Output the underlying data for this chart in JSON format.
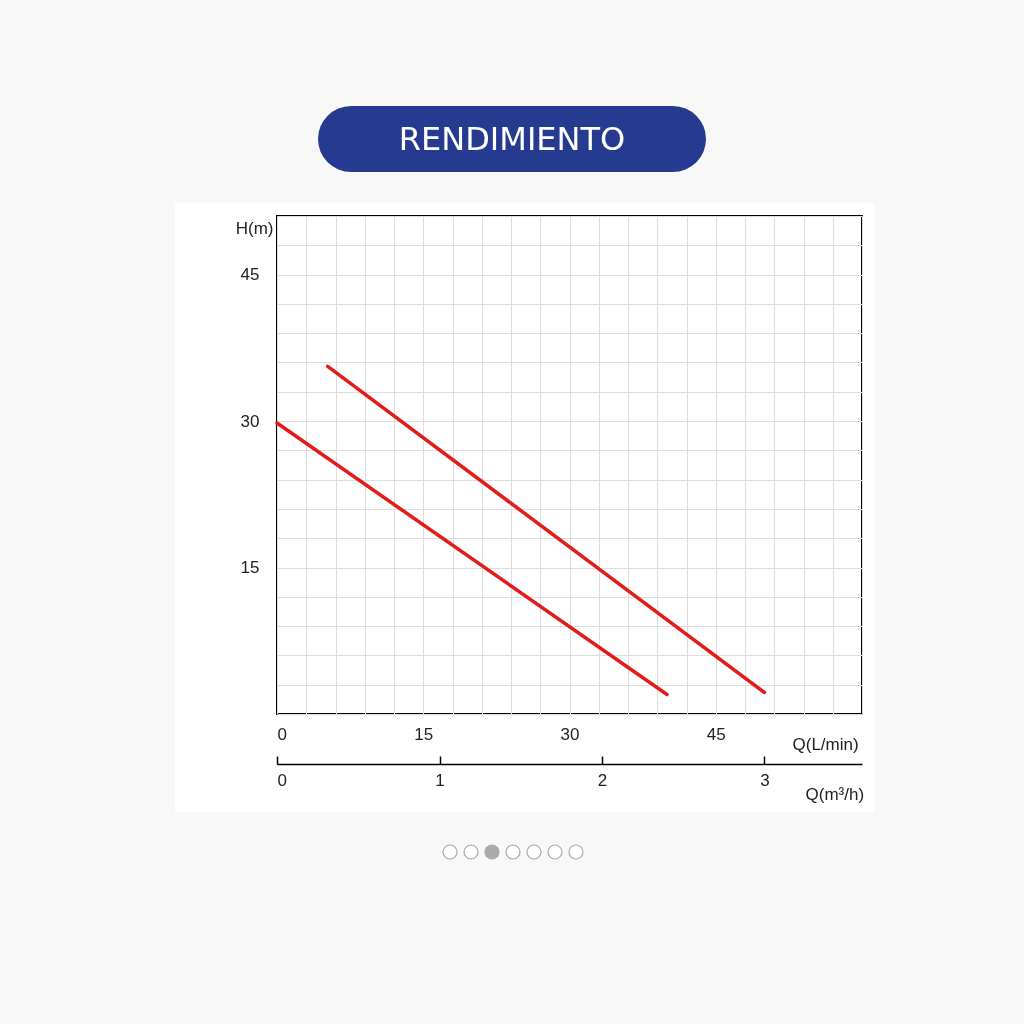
{
  "chart_data": {
    "type": "line",
    "title": "RENDIMIENTO",
    "xlabel": "Q(L/min)",
    "ylabel": "H(m)",
    "x2label": "Q(m³/h)",
    "xlim": [
      0,
      60
    ],
    "ylim": [
      0,
      51
    ],
    "x2lim": [
      0,
      3.6
    ],
    "xticks": [
      0,
      {
        "value": 3,
        "label": null
      },
      {
        "value": 6,
        "label": null
      },
      {
        "value": 9,
        "label": null
      },
      {
        "value": 12,
        "label": null
      },
      15,
      {
        "value": 18,
        "label": null
      },
      {
        "value": 21,
        "label": null
      },
      {
        "value": 24,
        "label": null
      },
      {
        "value": 27,
        "label": null
      },
      30,
      {
        "value": 33,
        "label": null
      },
      {
        "value": 36,
        "label": null
      },
      {
        "value": 39,
        "label": null
      },
      {
        "value": 42,
        "label": null
      },
      45,
      {
        "value": 48,
        "label": null
      },
      {
        "value": 51,
        "label": null
      },
      {
        "value": 54,
        "label": null
      },
      {
        "value": 57,
        "label": null
      },
      {
        "value": 60,
        "label": null
      }
    ],
    "yticks": [
      {
        "value": 0,
        "label": null
      },
      {
        "value": 3,
        "label": null
      },
      {
        "value": 6,
        "label": null
      },
      {
        "value": 9,
        "label": null
      },
      {
        "value": 12,
        "label": null
      },
      15,
      {
        "value": 18,
        "label": null
      },
      {
        "value": 21,
        "label": null
      },
      {
        "value": 24,
        "label": null
      },
      {
        "value": 27,
        "label": null
      },
      30,
      {
        "value": 33,
        "label": null
      },
      {
        "value": 36,
        "label": null
      },
      {
        "value": 39,
        "label": null
      },
      {
        "value": 42,
        "label": null
      },
      45,
      {
        "value": 48,
        "label": null
      },
      {
        "value": 51,
        "label": null
      }
    ],
    "x2ticks": [
      0,
      1,
      2,
      3
    ],
    "grid": true,
    "legend": false,
    "marker": "none",
    "line_style": "solid",
    "series": [
      {
        "color": "#e31b1b",
        "x": [
          5.2,
          50
        ],
        "values": [
          35.6,
          2.2
        ]
      },
      {
        "color": "#e31b1b",
        "x": [
          0,
          40
        ],
        "values": [
          29.8,
          2
        ]
      }
    ]
  }
}
